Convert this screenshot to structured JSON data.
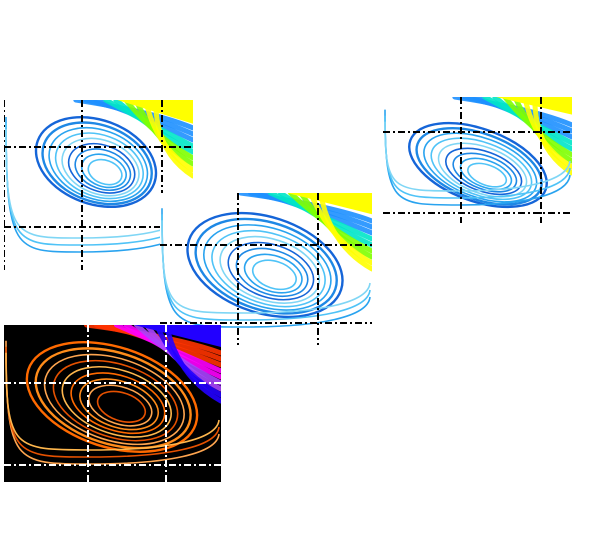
{
  "figure": {
    "panels": [
      {
        "id": "a",
        "colormap": "cool",
        "background": "#ffffff",
        "grid_color": "#000000",
        "corner_gradient": [
          "#1e90ff",
          "#00e5c8",
          "#7fff00",
          "#ffff00"
        ],
        "streamline_colors": [
          "#1565d8",
          "#1e88e5",
          "#29a3ef",
          "#4fc3f7",
          "#7fd6f5"
        ]
      },
      {
        "id": "b",
        "colormap": "cool",
        "background": "#ffffff",
        "grid_color": "#000000",
        "corner_gradient": [
          "#1e90ff",
          "#00e5c8",
          "#7fff00",
          "#ffff00"
        ],
        "streamline_colors": [
          "#1565d8",
          "#1e88e5",
          "#29a3ef",
          "#4fc3f7",
          "#7fd6f5"
        ]
      },
      {
        "id": "c",
        "colormap": "cool",
        "background": "#ffffff",
        "grid_color": "#000000",
        "corner_gradient": [
          "#1e90ff",
          "#00e5c8",
          "#7fff00",
          "#ffff00"
        ],
        "streamline_colors": [
          "#1565d8",
          "#1e88e5",
          "#29a3ef",
          "#4fc3f7",
          "#7fd6f5"
        ]
      },
      {
        "id": "d",
        "colormap": "hot",
        "background": "#000000",
        "grid_color": "#ffffff",
        "corner_gradient": [
          "#ff3300",
          "#ff00ff",
          "#aa44ff",
          "#2200ff"
        ],
        "streamline_colors": [
          "#ff6a00",
          "#ff8c1a",
          "#ffa54f",
          "#e65100",
          "#ffb74d"
        ]
      }
    ]
  }
}
